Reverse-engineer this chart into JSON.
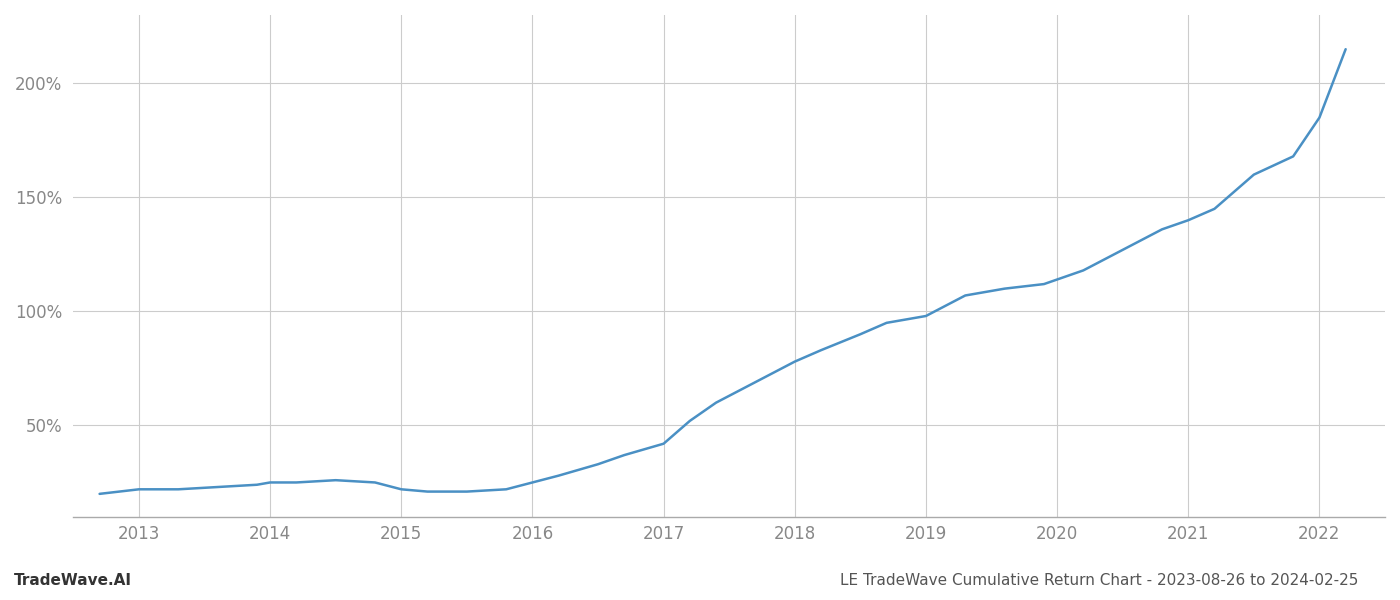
{
  "title": "LE TradeWave Cumulative Return Chart - 2023-08-26 to 2024-02-25",
  "watermark": "TradeWave.AI",
  "line_color": "#4a90c4",
  "background_color": "#ffffff",
  "grid_color": "#cccccc",
  "x_years": [
    2013,
    2014,
    2015,
    2016,
    2017,
    2018,
    2019,
    2020,
    2021,
    2022
  ],
  "x_data": [
    2012.7,
    2013.0,
    2013.3,
    2013.6,
    2013.9,
    2014.0,
    2014.2,
    2014.5,
    2014.8,
    2015.0,
    2015.2,
    2015.5,
    2015.8,
    2016.0,
    2016.2,
    2016.5,
    2016.7,
    2017.0,
    2017.2,
    2017.4,
    2017.6,
    2017.8,
    2018.0,
    2018.2,
    2018.5,
    2018.7,
    2019.0,
    2019.3,
    2019.6,
    2019.9,
    2020.2,
    2020.5,
    2020.8,
    2021.0,
    2021.2,
    2021.5,
    2021.8,
    2022.0,
    2022.2
  ],
  "y_data": [
    20,
    22,
    22,
    23,
    24,
    25,
    25,
    26,
    25,
    22,
    21,
    21,
    22,
    25,
    28,
    33,
    37,
    42,
    52,
    60,
    66,
    72,
    78,
    83,
    90,
    95,
    98,
    107,
    110,
    112,
    118,
    127,
    136,
    140,
    145,
    160,
    168,
    185,
    215
  ],
  "yticks": [
    50,
    100,
    150,
    200
  ],
  "ytick_labels": [
    "50%",
    "100%",
    "150%",
    "200%"
  ],
  "ylim": [
    10,
    230
  ],
  "xlim": [
    2012.5,
    2022.5
  ],
  "title_fontsize": 11,
  "watermark_fontsize": 11,
  "tick_fontsize": 12,
  "tick_color": "#888888",
  "title_color": "#555555",
  "watermark_color": "#333333",
  "linewidth": 1.8
}
